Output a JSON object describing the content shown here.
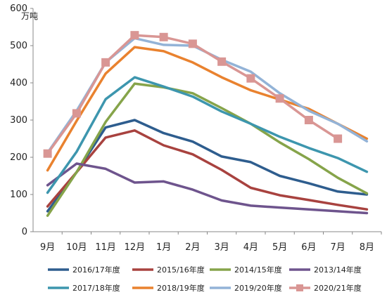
{
  "chart_data": {
    "type": "line",
    "unit": "万吨",
    "categories": [
      "9月",
      "10月",
      "11月",
      "12月",
      "1月",
      "2月",
      "3月",
      "4月",
      "5月",
      "6月",
      "7月",
      "8月"
    ],
    "ylim": [
      0,
      600
    ],
    "yticks": [
      0,
      100,
      200,
      300,
      400,
      500,
      600
    ],
    "grid": false,
    "legend_position": "bottom",
    "series": [
      {
        "name": "2016/17年度",
        "color": "#2e5d8e",
        "marker": false,
        "values": [
          55,
          160,
          280,
          300,
          265,
          242,
          202,
          187,
          150,
          130,
          108,
          100
        ]
      },
      {
        "name": "2015/16年度",
        "color": "#a8423f",
        "marker": false,
        "values": [
          68,
          160,
          253,
          272,
          232,
          208,
          166,
          118,
          98,
          85,
          72,
          60
        ]
      },
      {
        "name": "2014/15年度",
        "color": "#86a44a",
        "marker": false,
        "values": [
          43,
          160,
          295,
          398,
          388,
          372,
          332,
          290,
          240,
          195,
          145,
          103
        ]
      },
      {
        "name": "2013/14年度",
        "color": "#6e548d",
        "marker": false,
        "values": [
          125,
          183,
          169,
          132,
          135,
          113,
          84,
          70,
          65,
          60,
          55,
          50
        ]
      },
      {
        "name": "2017/18年度",
        "color": "#3d96ae",
        "marker": false,
        "values": [
          105,
          215,
          356,
          415,
          390,
          363,
          323,
          290,
          255,
          225,
          198,
          161
        ]
      },
      {
        "name": "2018/19年度",
        "color": "#e9822f",
        "marker": false,
        "values": [
          165,
          298,
          425,
          496,
          485,
          455,
          415,
          380,
          355,
          330,
          290,
          250
        ]
      },
      {
        "name": "2019/20年度",
        "color": "#93b3d7",
        "marker": false,
        "values": [
          212,
          325,
          455,
          520,
          502,
          500,
          462,
          430,
          372,
          325,
          290,
          243
        ]
      },
      {
        "name": "2020/21年度",
        "color": "#d99694",
        "marker": true,
        "values": [
          210,
          318,
          455,
          528,
          523,
          505,
          457,
          412,
          358,
          300,
          250,
          null
        ]
      }
    ]
  }
}
